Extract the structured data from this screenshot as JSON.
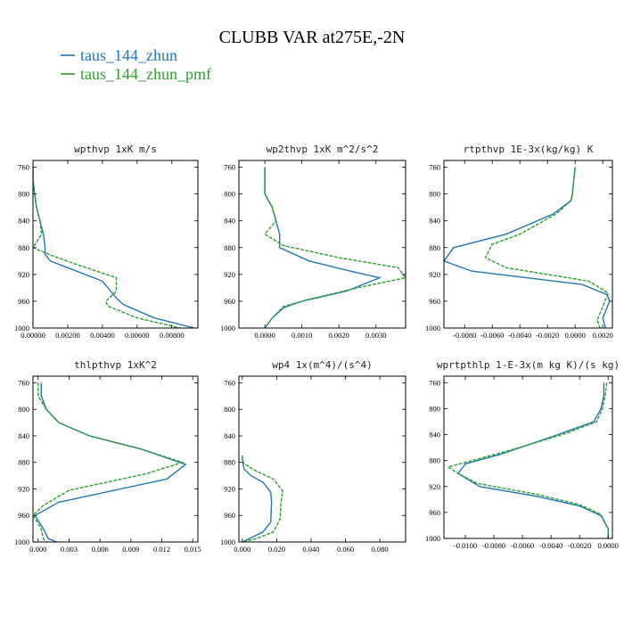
{
  "figure": {
    "title": "CLUBB VAR at275E,-2N",
    "legend": [
      {
        "label": "taus_144_zhun",
        "color": "#1f77b4"
      },
      {
        "label": "taus_144_zhun_pmf",
        "color": "#2ca02c"
      }
    ]
  },
  "chart_data": [
    {
      "type": "line",
      "title": "wpthvp  1xK m/s",
      "xlim": [
        0,
        0.0095
      ],
      "ylim": [
        1000,
        750
      ],
      "ylabel": "",
      "xlabel": "",
      "xticks": [
        0,
        0.002,
        0.004,
        0.006,
        0.008
      ],
      "xtick_labels": [
        "0.00000",
        "0.00200",
        "0.00400",
        "0.00600",
        "0.00800"
      ],
      "yticks": [
        760,
        800,
        840,
        880,
        920,
        960,
        1000
      ],
      "series": [
        {
          "name": "taus_144_zhun",
          "color": "#1f77b4",
          "dashed": false,
          "x": [
            0.0,
            0.0,
            0.0001,
            0.0002,
            0.0004,
            0.0006,
            0.0007,
            0.0007,
            0.001,
            0.002,
            0.004,
            0.0048,
            0.0052,
            0.007,
            0.0093
          ],
          "y": [
            760,
            780,
            800,
            820,
            840,
            860,
            880,
            890,
            900,
            910,
            930,
            955,
            965,
            985,
            1000
          ]
        },
        {
          "name": "taus_144_zhun_pmf",
          "color": "#2ca02c",
          "dashed": true,
          "x": [
            0.0,
            0.0,
            0.0001,
            0.0002,
            0.0004,
            0.0005,
            0.0,
            0.0012,
            0.0025,
            0.0048,
            0.0048,
            0.0042,
            0.0043,
            0.006,
            0.0085
          ],
          "y": [
            760,
            780,
            800,
            820,
            840,
            860,
            880,
            893,
            905,
            925,
            945,
            960,
            967,
            985,
            1000
          ]
        }
      ]
    },
    {
      "type": "line",
      "title": "wp2thvp  1xK m^2/s^2",
      "xlim": [
        -0.0007,
        0.0038
      ],
      "ylim": [
        1000,
        750
      ],
      "ylabel": "",
      "xlabel": "",
      "xticks": [
        0,
        0.001,
        0.002,
        0.003
      ],
      "xtick_labels": [
        "0.0000",
        "0.0010",
        "0.0020",
        "0.0030"
      ],
      "yticks": [
        760,
        800,
        840,
        880,
        920,
        960,
        1000
      ],
      "series": [
        {
          "name": "taus_144_zhun",
          "color": "#1f77b4",
          "dashed": false,
          "x": [
            0.0,
            0.0,
            0.0002,
            0.0003,
            0.0004,
            0.0004,
            0.0012,
            0.0023,
            0.0031,
            0.0022,
            0.001,
            0.0005,
            0.0002,
            0.0
          ],
          "y": [
            760,
            800,
            820,
            840,
            860,
            880,
            900,
            915,
            925,
            945,
            960,
            970,
            985,
            1000
          ]
        },
        {
          "name": "taus_144_zhun_pmf",
          "color": "#2ca02c",
          "dashed": true,
          "x": [
            0.0,
            0.0,
            0.0002,
            0.0003,
            0.0,
            0.0005,
            0.002,
            0.0036,
            0.0038,
            0.0025,
            0.0012,
            0.0005,
            0.0002,
            0.0
          ],
          "y": [
            760,
            800,
            820,
            840,
            860,
            877,
            895,
            910,
            925,
            940,
            957,
            968,
            985,
            1000
          ]
        }
      ]
    },
    {
      "type": "line",
      "title": "rtpthvp  1E-3x(kg/kg) K",
      "xlim": [
        -0.0095,
        0.0027
      ],
      "ylim": [
        1000,
        750
      ],
      "ylabel": "",
      "xlabel": "",
      "xticks": [
        -0.008,
        -0.006,
        -0.004,
        -0.002,
        0,
        0.002
      ],
      "xtick_labels": [
        "-0.0080",
        "-0.0060",
        "-0.0040",
        "-0.0020",
        "0.0000",
        "0.0020"
      ],
      "yticks": [
        760,
        800,
        840,
        880,
        920,
        960,
        1000
      ],
      "series": [
        {
          "name": "taus_144_zhun",
          "color": "#1f77b4",
          "dashed": false,
          "x": [
            0.0,
            -0.0001,
            -0.0002,
            -0.0003,
            -0.0016,
            -0.005,
            -0.0088,
            -0.0095,
            -0.0075,
            0.0005,
            0.0023,
            0.0025,
            0.002,
            0.0022
          ],
          "y": [
            760,
            780,
            800,
            810,
            830,
            860,
            880,
            900,
            915,
            935,
            950,
            960,
            985,
            1000
          ]
        },
        {
          "name": "taus_144_zhun_pmf",
          "color": "#2ca02c",
          "dashed": true,
          "x": [
            0.0,
            -0.0001,
            -0.0002,
            -0.0003,
            -0.0014,
            -0.004,
            -0.006,
            -0.0065,
            -0.005,
            0.001,
            0.0024,
            0.0022,
            0.0016,
            0.0018
          ],
          "y": [
            760,
            780,
            800,
            810,
            830,
            860,
            875,
            895,
            910,
            930,
            948,
            958,
            988,
            1000
          ]
        }
      ]
    },
    {
      "type": "line",
      "title": "thlpthvp  1xK^2",
      "xlim": [
        -0.0005,
        0.0155
      ],
      "ylim": [
        1000,
        750
      ],
      "ylabel": "",
      "xlabel": "",
      "xticks": [
        0,
        0.003,
        0.006,
        0.009,
        0.012,
        0.015
      ],
      "xtick_labels": [
        "0.000",
        "0.003",
        "0.006",
        "0.009",
        "0.012",
        "0.015"
      ],
      "yticks": [
        760,
        800,
        840,
        880,
        920,
        960,
        1000
      ],
      "series": [
        {
          "name": "taus_144_zhun",
          "color": "#1f77b4",
          "dashed": false,
          "x": [
            0.0003,
            0.0003,
            0.0008,
            0.002,
            0.005,
            0.01,
            0.0143,
            0.0125,
            0.008,
            0.002,
            -0.0003,
            0.0005,
            0.001,
            0.0018
          ],
          "y": [
            760,
            780,
            800,
            820,
            840,
            860,
            883,
            905,
            920,
            940,
            960,
            980,
            995,
            1000
          ]
        },
        {
          "name": "taus_144_zhun_pmf",
          "color": "#2ca02c",
          "dashed": true,
          "x": [
            0.0,
            0.0,
            0.0008,
            0.002,
            0.005,
            0.01,
            0.014,
            0.0105,
            0.003,
            0.0005,
            -0.0005,
            0.0003,
            0.0005,
            0.0008
          ],
          "y": [
            760,
            780,
            800,
            820,
            840,
            860,
            880,
            897,
            922,
            945,
            960,
            980,
            995,
            1000
          ]
        }
      ]
    },
    {
      "type": "line",
      "title": "wp4  1x(m^4)/(s^4)",
      "xlim": [
        -0.002,
        0.095
      ],
      "ylim": [
        1000,
        750
      ],
      "ylabel": "",
      "xlabel": "",
      "xticks": [
        0,
        0.02,
        0.04,
        0.06,
        0.08
      ],
      "xtick_labels": [
        "0.000",
        "0.020",
        "0.040",
        "0.060",
        "0.080"
      ],
      "yticks": [
        760,
        800,
        840,
        880,
        920,
        960,
        1000
      ],
      "series": [
        {
          "name": "taus_144_zhun",
          "color": "#1f77b4",
          "dashed": false,
          "x": [
            0.0,
            0.0,
            0.0003,
            0.001,
            0.005,
            0.012,
            0.0165,
            0.017,
            0.0165,
            0.012,
            0.004,
            0.0
          ],
          "y": [
            870,
            875,
            880,
            890,
            900,
            910,
            925,
            940,
            970,
            985,
            995,
            1000
          ]
        },
        {
          "name": "taus_144_zhun_pmf",
          "color": "#2ca02c",
          "dashed": true,
          "x": [
            0.0,
            0.0,
            0.001,
            0.008,
            0.018,
            0.0235,
            0.0225,
            0.022,
            0.018,
            0.008,
            0.0
          ],
          "y": [
            870,
            875,
            882,
            893,
            905,
            923,
            940,
            965,
            985,
            995,
            1000
          ]
        }
      ]
    },
    {
      "type": "line",
      "title": "wprtpthlp  1-E-3x(m kg K)/(s kg)",
      "xlim": [
        -0.0115,
        0.0003
      ],
      "ylim": [
        1000,
        750
      ],
      "ylabel": "",
      "xlabel": "",
      "xticks": [
        -0.01,
        -0.008,
        -0.006,
        -0.004,
        -0.002,
        0
      ],
      "xtick_labels": [
        "-0.0100",
        "-0.0080",
        "-0.0060",
        "-0.0040",
        "-0.0020",
        "0.0000"
      ],
      "yticks": [
        760,
        800,
        840,
        880,
        920,
        960,
        1000
      ],
      "series": [
        {
          "name": "taus_144_zhun",
          "color": "#1f77b4",
          "dashed": false,
          "x": [
            -0.0003,
            -0.0003,
            -0.0005,
            -0.001,
            -0.0035,
            -0.0075,
            -0.01,
            -0.0105,
            -0.009,
            -0.005,
            -0.002,
            -0.0005,
            0.0,
            0.0
          ],
          "y": [
            760,
            780,
            800,
            820,
            840,
            870,
            885,
            900,
            920,
            935,
            950,
            965,
            985,
            1000
          ]
        },
        {
          "name": "taus_144_zhun_pmf",
          "color": "#2ca02c",
          "dashed": true,
          "x": [
            -0.0001,
            -0.0002,
            -0.0004,
            -0.0008,
            -0.0032,
            -0.007,
            -0.0112,
            -0.0105,
            -0.0092,
            -0.005,
            -0.002,
            -0.0005,
            0.0,
            0.0
          ],
          "y": [
            760,
            780,
            800,
            820,
            840,
            865,
            890,
            900,
            915,
            932,
            948,
            963,
            985,
            1000
          ]
        }
      ]
    }
  ]
}
